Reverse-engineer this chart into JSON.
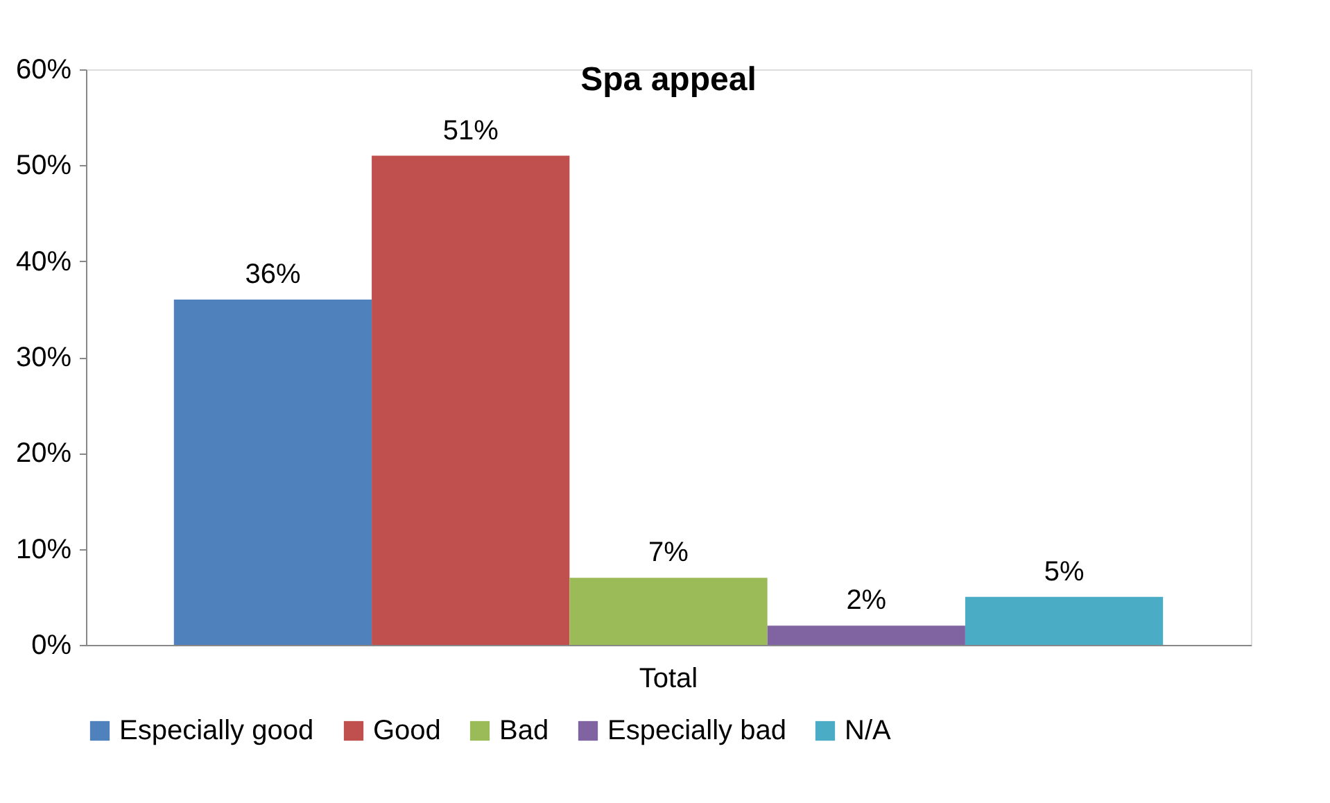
{
  "chart_data": {
    "type": "bar",
    "title": "Spa appeal",
    "categories": [
      "Total"
    ],
    "series": [
      {
        "name": "Especially good",
        "color": "#4f81bd",
        "values": [
          36
        ],
        "value_labels": [
          "36%"
        ]
      },
      {
        "name": "Good",
        "color": "#c0504d",
        "values": [
          51
        ],
        "value_labels": [
          "51%"
        ]
      },
      {
        "name": "Bad",
        "color": "#9bbb59",
        "values": [
          7
        ],
        "value_labels": [
          "7%"
        ]
      },
      {
        "name": "Especially bad",
        "color": "#8064a2",
        "values": [
          2
        ],
        "value_labels": [
          "2%"
        ]
      },
      {
        "name": "N/A",
        "color": "#4bacc6",
        "values": [
          5
        ],
        "value_labels": [
          "5%"
        ]
      }
    ],
    "ylim": [
      0,
      60
    ],
    "yticks": [
      {
        "value": 0,
        "label": "0%"
      },
      {
        "value": 10,
        "label": "10%"
      },
      {
        "value": 20,
        "label": "20%"
      },
      {
        "value": 30,
        "label": "30%"
      },
      {
        "value": 40,
        "label": "40%"
      },
      {
        "value": 50,
        "label": "50%"
      },
      {
        "value": 60,
        "label": "60%"
      }
    ],
    "grid": false,
    "legend": "bottom"
  }
}
